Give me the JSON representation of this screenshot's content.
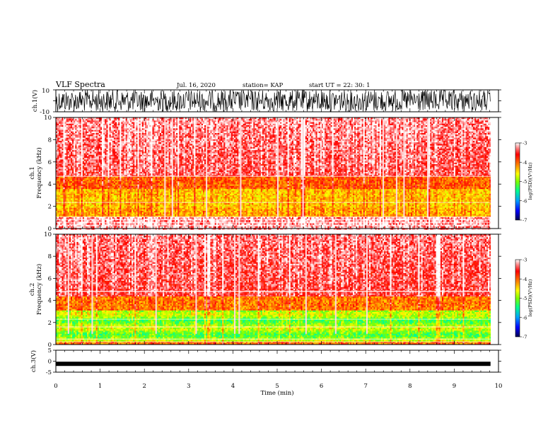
{
  "header": {
    "title": "VLF Spectra",
    "date": "Jul. 16, 2020",
    "station": "station= KAP",
    "start": "start UT =  22: 30: 1"
  },
  "chart_data": [
    {
      "type": "line",
      "id": "ch1_waveform",
      "ylabel": "ch.1(V)",
      "ylim": [
        -10,
        10
      ],
      "yticks": [
        "10",
        "-10"
      ],
      "xlim": [
        0,
        10
      ],
      "data_extent_min": 9.82,
      "description_of_signal": "dense noisy waveform",
      "color": "#000000"
    },
    {
      "type": "heatmap",
      "id": "ch1_spectrogram",
      "ylabel": "ch.1 Frequency (kHz)",
      "ylabel_lines": [
        "ch.1",
        "Frequency (kHz)"
      ],
      "ylim": [
        0,
        10
      ],
      "yticks": [
        "0",
        "2",
        "4",
        "6",
        "8",
        "10"
      ],
      "xlim": [
        0,
        10
      ],
      "data_extent_min": 9.82,
      "bands_khz": [
        {
          "from": 0.0,
          "to": 1.1,
          "level": "white-lines"
        },
        {
          "from": 1.1,
          "to": 2.0,
          "level": "-4.5"
        },
        {
          "from": 2.0,
          "to": 3.6,
          "level": "-4.2"
        },
        {
          "from": 3.6,
          "to": 4.8,
          "level": "-4.0"
        },
        {
          "from": 4.8,
          "to": 10.0,
          "level": "-3.5"
        }
      ]
    },
    {
      "type": "heatmap",
      "id": "ch2_spectrogram",
      "ylabel": "ch.2 Frequency (kHz)",
      "ylabel_lines": [
        "ch.2",
        "Frequency (kHz)"
      ],
      "ylim": [
        0,
        10
      ],
      "yticks": [
        "0",
        "2",
        "4",
        "6",
        "8",
        "10"
      ],
      "xlim": [
        0,
        10
      ],
      "data_extent_min": 9.82,
      "bands_khz": [
        {
          "from": 0.0,
          "to": 3.2,
          "level": "-5.0"
        },
        {
          "from": 3.2,
          "to": 4.4,
          "level": "-4.2"
        },
        {
          "from": 4.4,
          "to": 10.0,
          "level": "-3.5"
        }
      ]
    },
    {
      "type": "line",
      "id": "ch3_waveform",
      "ylabel": "ch.3(V)",
      "ylim": [
        -5,
        5
      ],
      "yticks": [
        "5",
        "0",
        "-5"
      ],
      "xlim": [
        0,
        10
      ],
      "data_extent_min": 9.82,
      "level_v": -1.2,
      "color": "#000000"
    }
  ],
  "xaxis": {
    "label": "Time (min)",
    "ticks": [
      "0",
      "1",
      "2",
      "3",
      "4",
      "5",
      "6",
      "7",
      "8",
      "9",
      "10"
    ]
  },
  "colorbar": {
    "label": "log(PSD)(V²/Hz)",
    "range": [
      -7,
      -3
    ],
    "ticks": [
      "-3",
      "-4",
      "-5",
      "-6",
      "-7"
    ],
    "colors": [
      "#000066",
      "#0000ff",
      "#00a0ff",
      "#00ff80",
      "#80ff00",
      "#ffff00",
      "#ff8000",
      "#ff0000",
      "#ff8080",
      "#ffffff"
    ]
  }
}
